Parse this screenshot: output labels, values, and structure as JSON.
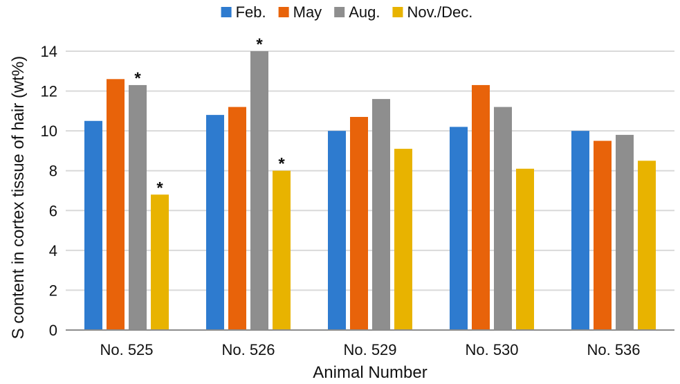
{
  "chart_data": {
    "type": "bar",
    "title": "",
    "xlabel": "Animal Number",
    "ylabel": "S content in cortex tissue of hair (wt%)",
    "ylim": [
      0,
      14
    ],
    "yticks": [
      0,
      2,
      4,
      6,
      8,
      10,
      12,
      14
    ],
    "grid": true,
    "legend_position": "top",
    "categories": [
      "No. 525",
      "No. 526",
      "No. 529",
      "No. 530",
      "No. 536"
    ],
    "series": [
      {
        "name": "Feb.",
        "color": "#2e7bcf",
        "values": [
          10.5,
          10.8,
          10.0,
          10.2,
          10.0
        ]
      },
      {
        "name": "May",
        "color": "#e8630a",
        "values": [
          12.6,
          11.2,
          10.7,
          12.3,
          9.5
        ]
      },
      {
        "name": "Aug.",
        "color": "#8e8e8e",
        "values": [
          12.3,
          14.0,
          11.6,
          11.2,
          9.8
        ]
      },
      {
        "name": "Nov./Dec.",
        "color": "#e8b300",
        "values": [
          6.8,
          8.0,
          9.1,
          8.1,
          8.5
        ]
      }
    ],
    "annotations": [
      {
        "category": "No. 525",
        "series": "Aug.",
        "text": "*"
      },
      {
        "category": "No. 525",
        "series": "Nov./Dec.",
        "text": "*"
      },
      {
        "category": "No. 526",
        "series": "Aug.",
        "text": "*"
      },
      {
        "category": "No. 526",
        "series": "Nov./Dec.",
        "text": "*"
      }
    ]
  }
}
